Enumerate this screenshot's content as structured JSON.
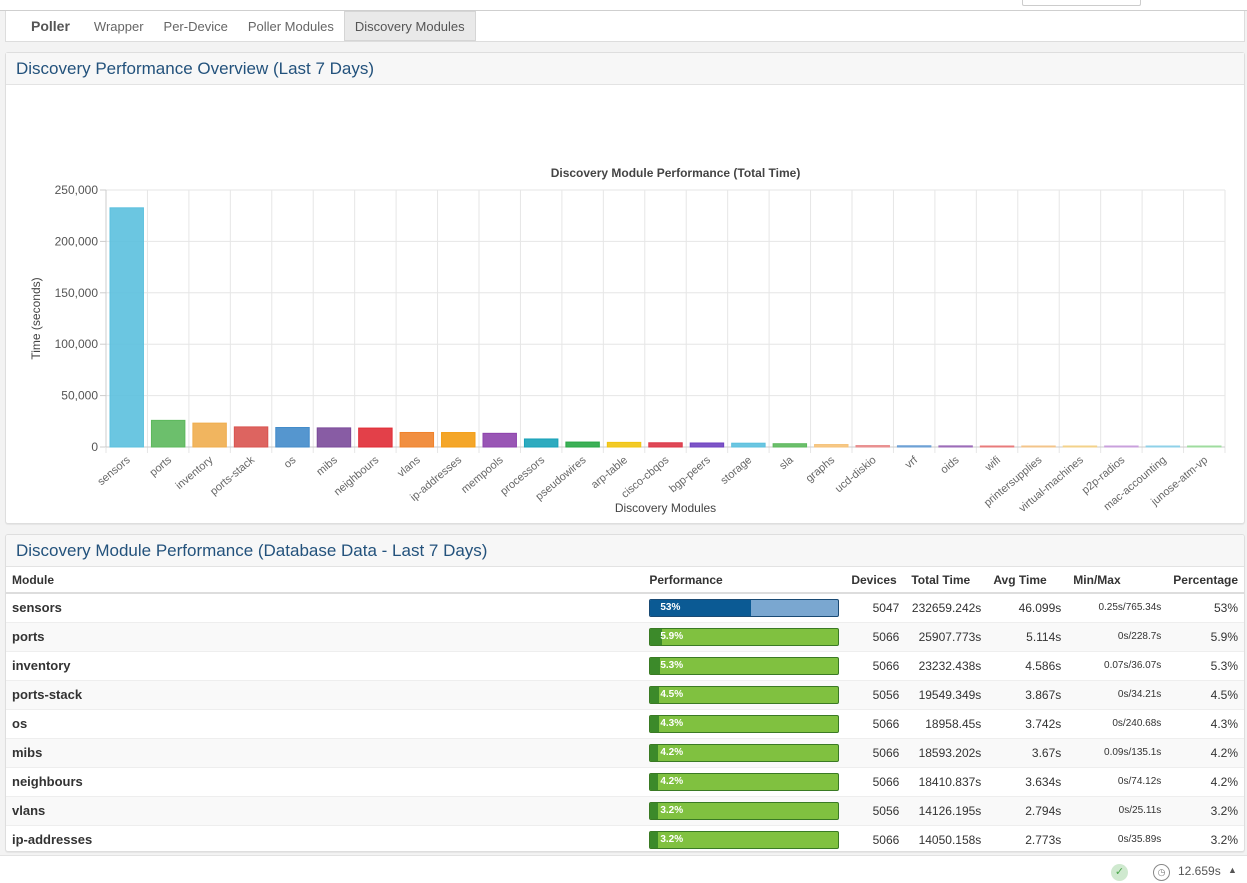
{
  "tabs": [
    {
      "label": "Poller",
      "brand": true
    },
    {
      "label": "Wrapper"
    },
    {
      "label": "Per-Device"
    },
    {
      "label": "Poller Modules"
    },
    {
      "label": "Discovery Modules",
      "active": true
    }
  ],
  "overview": {
    "title": "Discovery Performance Overview (Last 7 Days)"
  },
  "chart_data": {
    "type": "bar",
    "title": "Discovery Module Performance (Total Time)",
    "xlabel": "Discovery Modules",
    "ylabel": "Time (seconds)",
    "ylim": [
      0,
      250000
    ],
    "yticks": [
      "0",
      "50,000",
      "100,000",
      "150,000",
      "200,000",
      "250,000"
    ],
    "grid": true,
    "categories": [
      "sensors",
      "ports",
      "inventory",
      "ports-stack",
      "os",
      "mibs",
      "neighbours",
      "vlans",
      "ip-addresses",
      "mempools",
      "processors",
      "pseudowires",
      "arp-table",
      "cisco-cbqos",
      "bgp-peers",
      "storage",
      "sla",
      "graphs",
      "ucd-diskio",
      "vrf",
      "oids",
      "wifi",
      "printersupplies",
      "virtual-machines",
      "p2p-radios",
      "mac-accounting",
      "junose-atm-vp"
    ],
    "values": [
      232659,
      25908,
      23232,
      19549,
      18958,
      18593,
      18411,
      14126,
      14050,
      13300,
      7800,
      4800,
      4500,
      4100,
      3900,
      3700,
      3200,
      2400,
      1400,
      1200,
      1100,
      800,
      300,
      300,
      300,
      300,
      300
    ],
    "colors": [
      "#5bc0de",
      "#5cb85c",
      "#f0ad4e",
      "#d9534f",
      "#428bca",
      "#7b4a9a",
      "#e02b35",
      "#f0832c",
      "#f39c12",
      "#8e44ad",
      "#17a2b8",
      "#28a745",
      "#f1c40f",
      "#dc3545",
      "#6f42c1",
      "#5bc0de",
      "#5cb85c",
      "#f5c27a",
      "#e88b8b",
      "#6a9fd4",
      "#9b6bb8",
      "#e87b7b",
      "#f3c48a",
      "#f3d28a",
      "#c9a0dc",
      "#8fd1e8",
      "#9fdc9f"
    ]
  },
  "table": {
    "title": "Discovery Module Performance (Database Data - Last 7 Days)",
    "headers": {
      "module": "Module",
      "performance": "Performance",
      "devices": "Devices",
      "total": "Total Time",
      "avg": "Avg Time",
      "minmax": "Min/Max",
      "pct": "Percentage"
    },
    "rows": [
      {
        "module": "sensors",
        "bar_label": "53%",
        "fraction": 0.53,
        "devices": "5047",
        "total": "232659.242s",
        "avg": "46.099s",
        "minmax": "0.25s/765.34s",
        "pct": "53%",
        "style": "blue"
      },
      {
        "module": "ports",
        "bar_label": "5.9%",
        "fraction": 0.059,
        "devices": "5066",
        "total": "25907.773s",
        "avg": "5.114s",
        "minmax": "0s/228.7s",
        "pct": "5.9%",
        "style": "green"
      },
      {
        "module": "inventory",
        "bar_label": "5.3%",
        "fraction": 0.053,
        "devices": "5066",
        "total": "23232.438s",
        "avg": "4.586s",
        "minmax": "0.07s/36.07s",
        "pct": "5.3%",
        "style": "green"
      },
      {
        "module": "ports-stack",
        "bar_label": "4.5%",
        "fraction": 0.045,
        "devices": "5056",
        "total": "19549.349s",
        "avg": "3.867s",
        "minmax": "0s/34.21s",
        "pct": "4.5%",
        "style": "green"
      },
      {
        "module": "os",
        "bar_label": "4.3%",
        "fraction": 0.043,
        "devices": "5066",
        "total": "18958.45s",
        "avg": "3.742s",
        "minmax": "0s/240.68s",
        "pct": "4.3%",
        "style": "green"
      },
      {
        "module": "mibs",
        "bar_label": "4.2%",
        "fraction": 0.042,
        "devices": "5066",
        "total": "18593.202s",
        "avg": "3.67s",
        "minmax": "0.09s/135.1s",
        "pct": "4.2%",
        "style": "green"
      },
      {
        "module": "neighbours",
        "bar_label": "4.2%",
        "fraction": 0.042,
        "devices": "5066",
        "total": "18410.837s",
        "avg": "3.634s",
        "minmax": "0s/74.12s",
        "pct": "4.2%",
        "style": "green"
      },
      {
        "module": "vlans",
        "bar_label": "3.2%",
        "fraction": 0.032,
        "devices": "5056",
        "total": "14126.195s",
        "avg": "2.794s",
        "minmax": "0s/25.11s",
        "pct": "3.2%",
        "style": "green"
      },
      {
        "module": "ip-addresses",
        "bar_label": "3.2%",
        "fraction": 0.032,
        "devices": "5066",
        "total": "14050.158s",
        "avg": "2.773s",
        "minmax": "0s/35.89s",
        "pct": "3.2%",
        "style": "green"
      }
    ]
  },
  "footer": {
    "render_time": "12.659s",
    "status_icon": "check-icon",
    "clock_icon": "clock-icon"
  }
}
